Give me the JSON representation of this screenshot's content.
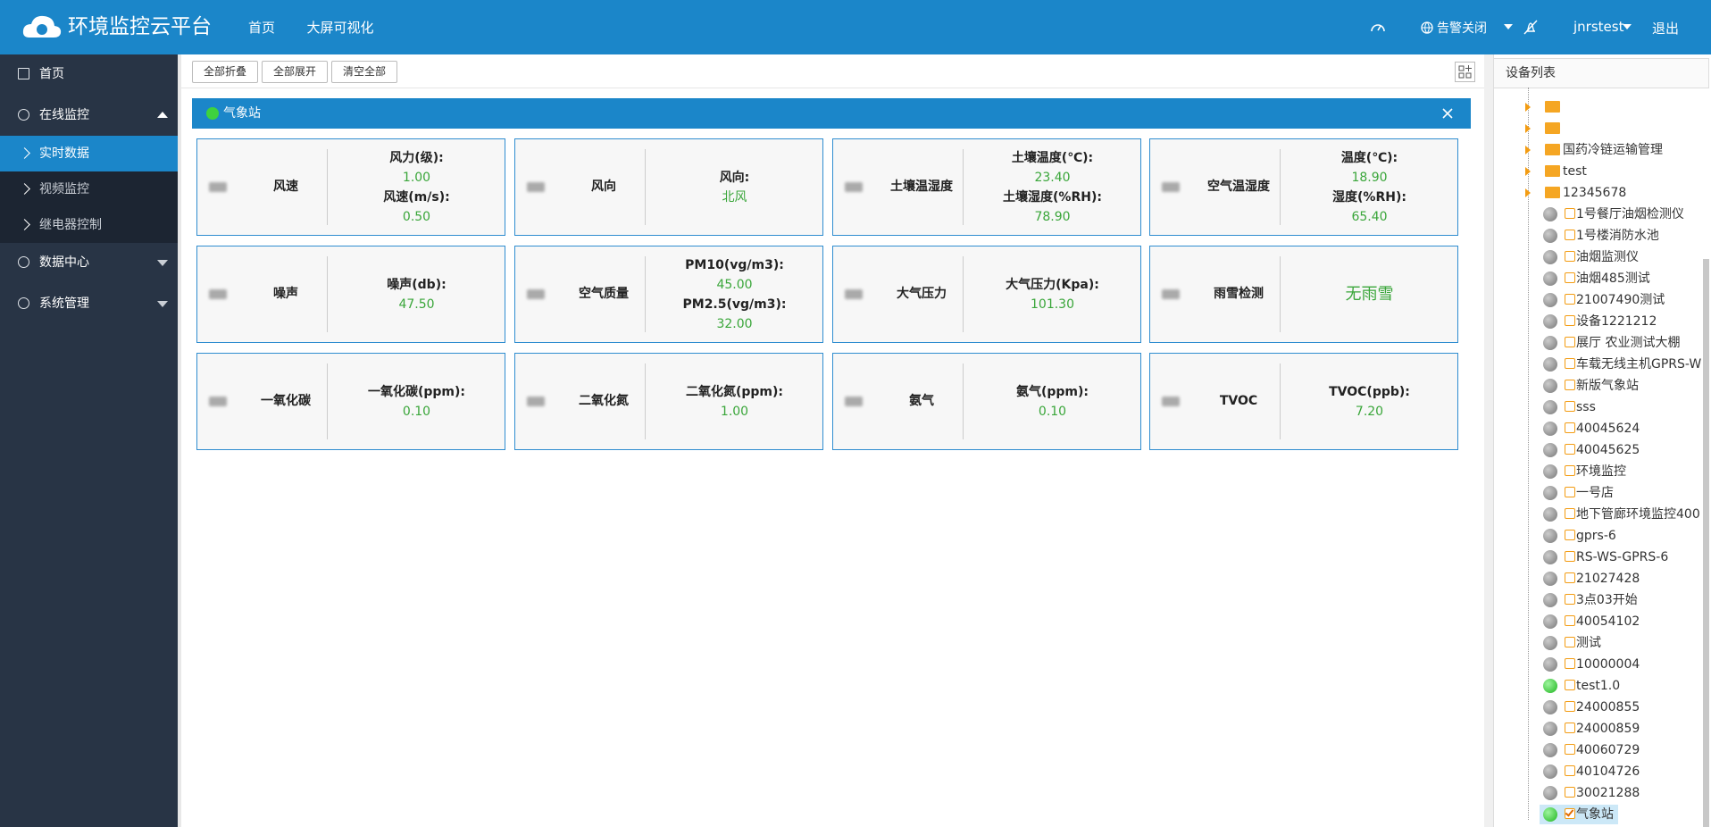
{
  "header": {
    "title": "环境监控云平台",
    "nav": [
      "首页",
      "大屏可视化"
    ],
    "alarm": "告警关闭",
    "user": "jnrstest",
    "logout": "退出"
  },
  "sidebar": {
    "items": [
      {
        "label": "首页",
        "level": 1
      },
      {
        "label": "在线监控",
        "level": 1
      },
      {
        "label": "实时数据",
        "level": 2,
        "active": true
      },
      {
        "label": "视频监控",
        "level": 2
      },
      {
        "label": "继电器控制",
        "level": 2
      },
      {
        "label": "数据中心",
        "level": 1
      },
      {
        "label": "系统管理",
        "level": 1
      }
    ]
  },
  "toolbar": {
    "buttons": [
      "全部折叠",
      "全部展开",
      "清空全部"
    ]
  },
  "station": {
    "title": "气象站",
    "cards": [
      {
        "name": "风速",
        "readings": [
          {
            "label": "风力(级):",
            "value": "1.00"
          },
          {
            "label": "风速(m/s):",
            "value": "0.50"
          }
        ]
      },
      {
        "name": "风向",
        "readings": [
          {
            "label": "风向:",
            "value": "北风"
          }
        ]
      },
      {
        "name": "土壤温湿度",
        "readings": [
          {
            "label": "土壤温度(℃):",
            "value": "23.40"
          },
          {
            "label": "土壤湿度(%RH):",
            "value": "78.90"
          }
        ]
      },
      {
        "name": "空气温湿度",
        "readings": [
          {
            "label": "温度(℃):",
            "value": "18.90"
          },
          {
            "label": "湿度(%RH):",
            "value": "65.40"
          }
        ]
      },
      {
        "name": "噪声",
        "readings": [
          {
            "label": "噪声(db):",
            "value": "47.50"
          }
        ]
      },
      {
        "name": "空气质量",
        "readings": [
          {
            "label": "PM10(vg/m3):",
            "value": "45.00"
          },
          {
            "label": "PM2.5(vg/m3):",
            "value": "32.00"
          }
        ]
      },
      {
        "name": "大气压力",
        "readings": [
          {
            "label": "大气压力(Kpa):",
            "value": "101.30"
          }
        ]
      },
      {
        "name": "雨雪检测",
        "readings": [
          {
            "value": "无雨雪"
          }
        ]
      },
      {
        "name": "一氧化碳",
        "readings": [
          {
            "label": "一氧化碳(ppm):",
            "value": "0.10"
          }
        ]
      },
      {
        "name": "二氧化氮",
        "readings": [
          {
            "label": "二氧化氮(ppm):",
            "value": "1.00"
          }
        ]
      },
      {
        "name": "氨气",
        "readings": [
          {
            "label": "氨气(ppm):",
            "value": "0.10"
          }
        ]
      },
      {
        "name": "TVOC",
        "readings": [
          {
            "label": "TVOC(ppb):",
            "value": "7.20"
          }
        ]
      }
    ]
  },
  "device_panel": {
    "title": "设备列表",
    "folders": [
      {},
      {},
      {
        "name": "国药冷链运输管理"
      },
      {
        "name": "test"
      },
      {
        "name": "12345678"
      }
    ],
    "devices": [
      {
        "name": "1号餐厅油烟检测仪",
        "online": false
      },
      {
        "name": "1号楼消防水池",
        "online": false
      },
      {
        "name": "油烟监测仪",
        "online": false
      },
      {
        "name": "油烟485测试",
        "online": false
      },
      {
        "name": "21007490测试",
        "online": false
      },
      {
        "name": "设备1221212",
        "online": false
      },
      {
        "name": "展厅 农业测试大棚",
        "online": false
      },
      {
        "name": "车载无线主机GPRS-W",
        "online": false
      },
      {
        "name": "新版气象站",
        "online": false
      },
      {
        "name": "sss",
        "online": false
      },
      {
        "name": "40045624",
        "online": false
      },
      {
        "name": "40045625",
        "online": false
      },
      {
        "name": "环境监控",
        "online": false
      },
      {
        "name": "一号店",
        "online": false
      },
      {
        "name": "地下管廊环境监控400",
        "online": false
      },
      {
        "name": "gprs-6",
        "online": false
      },
      {
        "name": "RS-WS-GPRS-6",
        "online": false
      },
      {
        "name": "21027428",
        "online": false
      },
      {
        "name": "3点03开始",
        "online": false
      },
      {
        "name": "40054102",
        "online": false
      },
      {
        "name": "测试",
        "online": false
      },
      {
        "name": "10000004",
        "online": false
      },
      {
        "name": "test1.0",
        "online": true
      },
      {
        "name": "24000855",
        "online": false
      },
      {
        "name": "24000859",
        "online": false
      },
      {
        "name": "40060729",
        "online": false
      },
      {
        "name": "40104726",
        "online": false
      },
      {
        "name": "30021288",
        "online": false
      },
      {
        "name": "气象站",
        "online": true,
        "selected": true
      }
    ]
  }
}
